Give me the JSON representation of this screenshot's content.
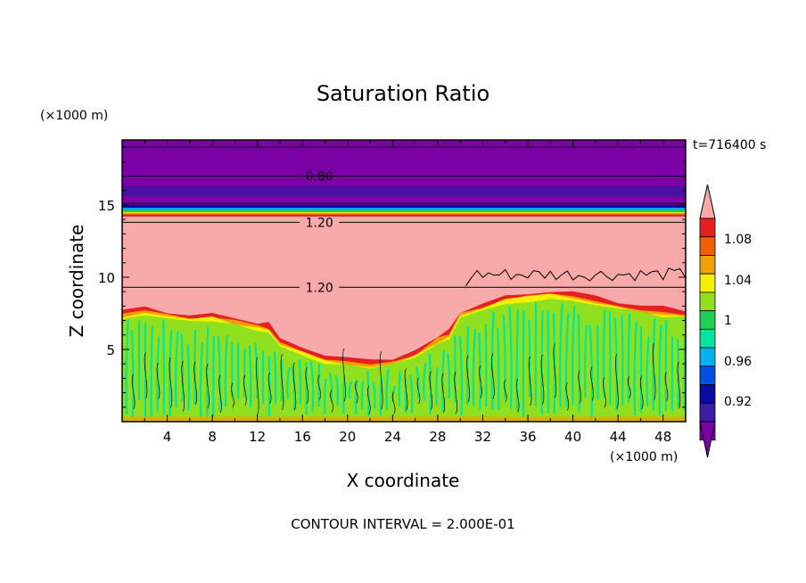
{
  "chart_data": {
    "type": "heatmap",
    "title": "Saturation Ratio",
    "xlabel": "X coordinate",
    "ylabel": "Z coordinate",
    "x_unit": "(×1000 m)",
    "z_unit": "(×1000 m)",
    "time_label": "t=716400 s",
    "footer": "CONTOUR INTERVAL = 2.000E-01",
    "xlim": [
      0,
      50
    ],
    "zlim": [
      0,
      19.5
    ],
    "x_ticks": [
      4,
      8,
      12,
      16,
      20,
      24,
      28,
      32,
      36,
      40,
      44,
      48
    ],
    "z_ticks": [
      5,
      10,
      15
    ],
    "contour_labels": [
      {
        "text": "0.80",
        "x": 17.5,
        "z": 17.0
      },
      {
        "text": "1.20",
        "x": 17.5,
        "z": 13.8
      },
      {
        "text": "1.20",
        "x": 17.5,
        "z": 9.3
      }
    ],
    "colorbar": {
      "levels": [
        0.92,
        0.96,
        1,
        1.04,
        1.08
      ],
      "level_labels": [
        "0.92",
        "0.96",
        "1",
        "1.04",
        "1.08"
      ],
      "colors": [
        "#7b00a5",
        "#3c1ea5",
        "#0a0aa5",
        "#0050e6",
        "#00b4f0",
        "#00e6a0",
        "#20d050",
        "#90e020",
        "#f0f000",
        "#f0a000",
        "#f06000",
        "#e62020",
        "#f8aaaa"
      ]
    },
    "regions": {
      "upper_value": "< 0.92",
      "upper_top_z": 19.5,
      "transition_z": [
        14.2,
        15.0
      ],
      "supersaturated_value": "> 1.08",
      "mixed_layer_top_z": [
        3.5,
        8.5
      ]
    },
    "palette": {
      "deep": "#7b00a5",
      "deep_band": "#4a10a0",
      "pink": "#f8aaaa",
      "green": "#90e020",
      "teal": "#00e6a0",
      "red": "#e62020",
      "orange": "#f0a000",
      "yellow": "#f0f000"
    }
  }
}
